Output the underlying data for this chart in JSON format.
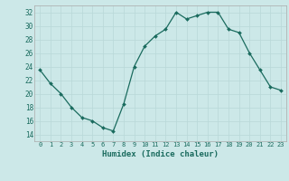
{
  "x": [
    0,
    1,
    2,
    3,
    4,
    5,
    6,
    7,
    8,
    9,
    10,
    11,
    12,
    13,
    14,
    15,
    16,
    17,
    18,
    19,
    20,
    21,
    22,
    23
  ],
  "y": [
    23.5,
    21.5,
    20.0,
    18.0,
    16.5,
    16.0,
    15.0,
    14.5,
    18.5,
    24.0,
    27.0,
    28.5,
    29.5,
    32.0,
    31.0,
    31.5,
    32.0,
    32.0,
    29.5,
    29.0,
    26.0,
    23.5,
    21.0,
    20.5
  ],
  "xlabel": "Humidex (Indice chaleur)",
  "ylim": [
    13,
    33
  ],
  "xlim": [
    -0.5,
    23.5
  ],
  "yticks": [
    14,
    16,
    18,
    20,
    22,
    24,
    26,
    28,
    30,
    32
  ],
  "xticks": [
    0,
    1,
    2,
    3,
    4,
    5,
    6,
    7,
    8,
    9,
    10,
    11,
    12,
    13,
    14,
    15,
    16,
    17,
    18,
    19,
    20,
    21,
    22,
    23
  ],
  "xtick_labels": [
    "0",
    "1",
    "2",
    "3",
    "4",
    "5",
    "6",
    "7",
    "8",
    "9",
    "10",
    "11",
    "12",
    "13",
    "14",
    "15",
    "16",
    "17",
    "18",
    "19",
    "20",
    "21",
    "22",
    "23"
  ],
  "line_color": "#1a6b5e",
  "marker": "D",
  "marker_size": 2,
  "background_color": "#cce8e8",
  "grid_color": "#b8d8d8",
  "spine_color": "#aaaaaa"
}
